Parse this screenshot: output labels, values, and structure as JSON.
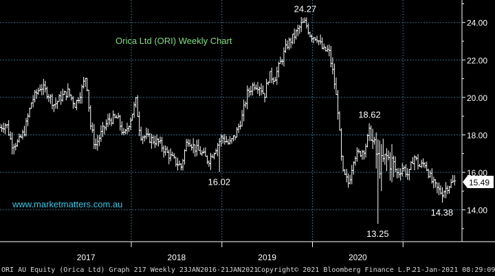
{
  "chart_data": {
    "type": "ohlc",
    "title": "Orica Ltd (ORI) Weekly Chart",
    "watermark": "www.marketmatters.com.au",
    "y_ticks": [
      "14.00",
      "16.00",
      "18.00",
      "20.00",
      "22.00",
      "24.00"
    ],
    "ylim": [
      12.3,
      25.2
    ],
    "xlim": [
      2016.05,
      2021.06
    ],
    "x_tick_labels": [
      {
        "label": "2017",
        "x": 2017.0
      },
      {
        "label": "2018",
        "x": 2018.0
      },
      {
        "label": "2019",
        "x": 2019.0
      },
      {
        "label": "2020",
        "x": 2020.0
      }
    ],
    "annotations": [
      {
        "text": "24.27",
        "x": 2019.42,
        "y": 24.27,
        "pos": "above"
      },
      {
        "text": "16.02",
        "x": 2018.47,
        "y": 16.02,
        "pos": "below"
      },
      {
        "text": "18.62",
        "x": 2020.13,
        "y": 18.62,
        "pos": "above"
      },
      {
        "text": "13.25",
        "x": 2020.22,
        "y": 13.25,
        "pos": "below"
      },
      {
        "text": "14.38",
        "x": 2020.93,
        "y": 14.38,
        "pos": "below"
      }
    ],
    "last_price": "15.49",
    "last_value": 15.49,
    "colors": {
      "background": "#000000",
      "bars": "#ffffff",
      "grid": "#2a6f8a",
      "title": "#7ee07e",
      "watermark": "#33c9e8",
      "axis_text": "#ffffff",
      "price_tag_bg": "#ffffff",
      "price_tag_text": "#000000"
    },
    "anchors": [
      [
        2016.05,
        18.4
      ],
      [
        2016.12,
        18.6
      ],
      [
        2016.18,
        17.5
      ],
      [
        2016.25,
        17.6
      ],
      [
        2016.32,
        18.2
      ],
      [
        2016.4,
        19.8
      ],
      [
        2016.5,
        20.6
      ],
      [
        2016.58,
        20.2
      ],
      [
        2016.65,
        19.6
      ],
      [
        2016.72,
        20.0
      ],
      [
        2016.8,
        20.3
      ],
      [
        2016.88,
        19.6
      ],
      [
        2016.95,
        20.4
      ],
      [
        2017.0,
        21.2
      ],
      [
        2017.05,
        18.5
      ],
      [
        2017.1,
        17.4
      ],
      [
        2017.18,
        18.2
      ],
      [
        2017.25,
        18.8
      ],
      [
        2017.35,
        18.9
      ],
      [
        2017.42,
        17.9
      ],
      [
        2017.5,
        19.0
      ],
      [
        2017.55,
        19.8
      ],
      [
        2017.6,
        18.0
      ],
      [
        2017.7,
        17.8
      ],
      [
        2017.8,
        17.6
      ],
      [
        2017.9,
        17.0
      ],
      [
        2017.98,
        16.6
      ],
      [
        2018.05,
        16.3
      ],
      [
        2018.12,
        17.8
      ],
      [
        2018.2,
        17.3
      ],
      [
        2018.28,
        17.0
      ],
      [
        2018.35,
        16.6
      ],
      [
        2018.42,
        17.2
      ],
      [
        2018.5,
        17.9
      ],
      [
        2018.58,
        17.5
      ],
      [
        2018.65,
        18.0
      ],
      [
        2018.72,
        18.9
      ],
      [
        2018.78,
        20.2
      ],
      [
        2018.85,
        20.7
      ],
      [
        2018.92,
        20.6
      ],
      [
        2018.97,
        20.1
      ],
      [
        2019.02,
        21.2
      ],
      [
        2019.08,
        21.0
      ],
      [
        2019.15,
        21.9
      ],
      [
        2019.22,
        22.8
      ],
      [
        2019.3,
        23.3
      ],
      [
        2019.38,
        23.9
      ],
      [
        2019.42,
        24.0
      ],
      [
        2019.48,
        23.3
      ],
      [
        2019.55,
        23.2
      ],
      [
        2019.62,
        22.5
      ],
      [
        2019.68,
        22.5
      ],
      [
        2019.73,
        21.2
      ],
      [
        2019.78,
        19.4
      ],
      [
        2019.83,
        16.0
      ],
      [
        2019.9,
        15.4
      ],
      [
        2019.96,
        16.9
      ],
      [
        2020.02,
        17.0
      ],
      [
        2020.08,
        17.3
      ],
      [
        2020.13,
        18.2
      ],
      [
        2020.18,
        17.3
      ],
      [
        2020.25,
        16.3
      ],
      [
        2020.32,
        16.8
      ],
      [
        2020.38,
        16.5
      ],
      [
        2020.44,
        15.9
      ],
      [
        2020.5,
        16.3
      ],
      [
        2020.56,
        15.8
      ],
      [
        2020.62,
        16.9
      ],
      [
        2020.68,
        16.3
      ],
      [
        2020.74,
        16.5
      ],
      [
        2020.82,
        15.5
      ],
      [
        2020.88,
        15.1
      ],
      [
        2020.93,
        14.9
      ],
      [
        2021.0,
        15.3
      ],
      [
        2021.06,
        15.49
      ]
    ]
  },
  "footer": {
    "left": "ORI AU Equity (Orica Ltd) Graph 217  Weekly 23JAN2016-21JAN2021",
    "center": "Copyright© 2021 Bloomberg Finance L.P.",
    "right": "21-Jan-2021 08:29:09"
  }
}
